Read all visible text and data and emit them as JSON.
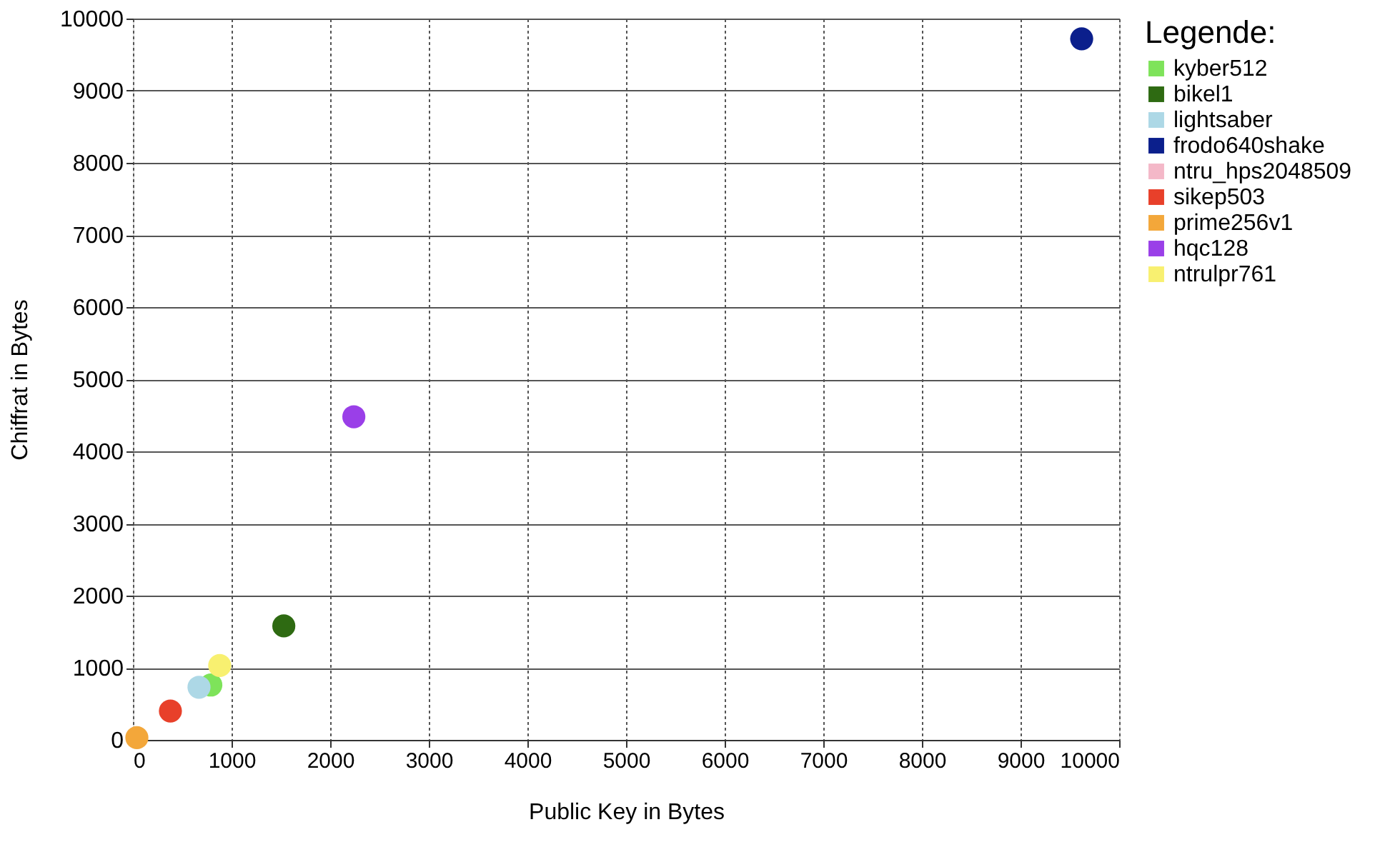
{
  "chart_data": {
    "type": "scatter",
    "xlabel": "Public Key in Bytes",
    "ylabel": "Chiffrat in Bytes",
    "legend_title": "Legende:",
    "xlim": [
      0,
      10000
    ],
    "xticks": [
      0,
      1000,
      2000,
      3000,
      4000,
      5000,
      6000,
      7000,
      8000,
      9000,
      10000
    ],
    "ylim": [
      0,
      10000
    ],
    "yticks": [
      0,
      1000,
      2000,
      3000,
      4000,
      5000,
      6000,
      7000,
      8000,
      9000,
      10000
    ],
    "grid": true,
    "legend": "right",
    "marker": "circle",
    "series": [
      {
        "name": "kyber512",
        "color": "#7ee35a",
        "x": [
          790
        ],
        "values": [
          760
        ]
      },
      {
        "name": "bikel1",
        "color": "#2e6a12",
        "x": [
          1530
        ],
        "values": [
          1580
        ]
      },
      {
        "name": "lightsaber",
        "color": "#add8e6",
        "x": [
          670
        ],
        "values": [
          730
        ]
      },
      {
        "name": "frodo640shake",
        "color": "#0b1f8c",
        "x": [
          9620
        ],
        "values": [
          9720
        ]
      },
      {
        "name": "ntru_hps2048509",
        "color": "#f4b8c8",
        "x": [
          null
        ],
        "values": [
          null
        ]
      },
      {
        "name": "sikep503",
        "color": "#e8402a",
        "x": [
          380
        ],
        "values": [
          400
        ]
      },
      {
        "name": "prime256v1",
        "color": "#f3a73a",
        "x": [
          40
        ],
        "values": [
          30
        ]
      },
      {
        "name": "hqc128",
        "color": "#9a3fe8",
        "x": [
          2240
        ],
        "values": [
          4480
        ]
      },
      {
        "name": "ntrulpr761",
        "color": "#f8f070",
        "x": [
          880
        ],
        "values": [
          1030
        ]
      }
    ]
  }
}
